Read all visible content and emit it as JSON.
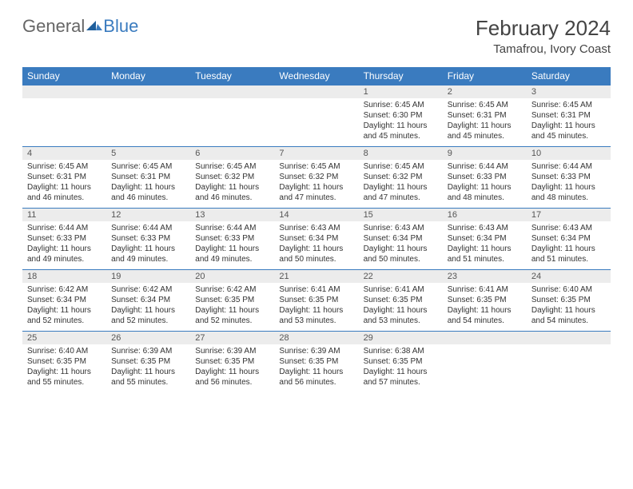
{
  "logo": {
    "part1": "General",
    "part2": "Blue"
  },
  "title": "February 2024",
  "location": "Tamafrou, Ivory Coast",
  "colors": {
    "header_bg": "#3a7bbf",
    "band_bg": "#ececec",
    "text": "#333333",
    "page_bg": "#ffffff"
  },
  "days_of_week": [
    "Sunday",
    "Monday",
    "Tuesday",
    "Wednesday",
    "Thursday",
    "Friday",
    "Saturday"
  ],
  "weeks": [
    [
      null,
      null,
      null,
      null,
      {
        "n": "1",
        "sr": "6:45 AM",
        "ss": "6:30 PM",
        "dl": "11 hours and 45 minutes."
      },
      {
        "n": "2",
        "sr": "6:45 AM",
        "ss": "6:31 PM",
        "dl": "11 hours and 45 minutes."
      },
      {
        "n": "3",
        "sr": "6:45 AM",
        "ss": "6:31 PM",
        "dl": "11 hours and 45 minutes."
      }
    ],
    [
      {
        "n": "4",
        "sr": "6:45 AM",
        "ss": "6:31 PM",
        "dl": "11 hours and 46 minutes."
      },
      {
        "n": "5",
        "sr": "6:45 AM",
        "ss": "6:31 PM",
        "dl": "11 hours and 46 minutes."
      },
      {
        "n": "6",
        "sr": "6:45 AM",
        "ss": "6:32 PM",
        "dl": "11 hours and 46 minutes."
      },
      {
        "n": "7",
        "sr": "6:45 AM",
        "ss": "6:32 PM",
        "dl": "11 hours and 47 minutes."
      },
      {
        "n": "8",
        "sr": "6:45 AM",
        "ss": "6:32 PM",
        "dl": "11 hours and 47 minutes."
      },
      {
        "n": "9",
        "sr": "6:44 AM",
        "ss": "6:33 PM",
        "dl": "11 hours and 48 minutes."
      },
      {
        "n": "10",
        "sr": "6:44 AM",
        "ss": "6:33 PM",
        "dl": "11 hours and 48 minutes."
      }
    ],
    [
      {
        "n": "11",
        "sr": "6:44 AM",
        "ss": "6:33 PM",
        "dl": "11 hours and 49 minutes."
      },
      {
        "n": "12",
        "sr": "6:44 AM",
        "ss": "6:33 PM",
        "dl": "11 hours and 49 minutes."
      },
      {
        "n": "13",
        "sr": "6:44 AM",
        "ss": "6:33 PM",
        "dl": "11 hours and 49 minutes."
      },
      {
        "n": "14",
        "sr": "6:43 AM",
        "ss": "6:34 PM",
        "dl": "11 hours and 50 minutes."
      },
      {
        "n": "15",
        "sr": "6:43 AM",
        "ss": "6:34 PM",
        "dl": "11 hours and 50 minutes."
      },
      {
        "n": "16",
        "sr": "6:43 AM",
        "ss": "6:34 PM",
        "dl": "11 hours and 51 minutes."
      },
      {
        "n": "17",
        "sr": "6:43 AM",
        "ss": "6:34 PM",
        "dl": "11 hours and 51 minutes."
      }
    ],
    [
      {
        "n": "18",
        "sr": "6:42 AM",
        "ss": "6:34 PM",
        "dl": "11 hours and 52 minutes."
      },
      {
        "n": "19",
        "sr": "6:42 AM",
        "ss": "6:34 PM",
        "dl": "11 hours and 52 minutes."
      },
      {
        "n": "20",
        "sr": "6:42 AM",
        "ss": "6:35 PM",
        "dl": "11 hours and 52 minutes."
      },
      {
        "n": "21",
        "sr": "6:41 AM",
        "ss": "6:35 PM",
        "dl": "11 hours and 53 minutes."
      },
      {
        "n": "22",
        "sr": "6:41 AM",
        "ss": "6:35 PM",
        "dl": "11 hours and 53 minutes."
      },
      {
        "n": "23",
        "sr": "6:41 AM",
        "ss": "6:35 PM",
        "dl": "11 hours and 54 minutes."
      },
      {
        "n": "24",
        "sr": "6:40 AM",
        "ss": "6:35 PM",
        "dl": "11 hours and 54 minutes."
      }
    ],
    [
      {
        "n": "25",
        "sr": "6:40 AM",
        "ss": "6:35 PM",
        "dl": "11 hours and 55 minutes."
      },
      {
        "n": "26",
        "sr": "6:39 AM",
        "ss": "6:35 PM",
        "dl": "11 hours and 55 minutes."
      },
      {
        "n": "27",
        "sr": "6:39 AM",
        "ss": "6:35 PM",
        "dl": "11 hours and 56 minutes."
      },
      {
        "n": "28",
        "sr": "6:39 AM",
        "ss": "6:35 PM",
        "dl": "11 hours and 56 minutes."
      },
      {
        "n": "29",
        "sr": "6:38 AM",
        "ss": "6:35 PM",
        "dl": "11 hours and 57 minutes."
      },
      null,
      null
    ]
  ],
  "labels": {
    "sunrise": "Sunrise:",
    "sunset": "Sunset:",
    "daylight": "Daylight:"
  }
}
